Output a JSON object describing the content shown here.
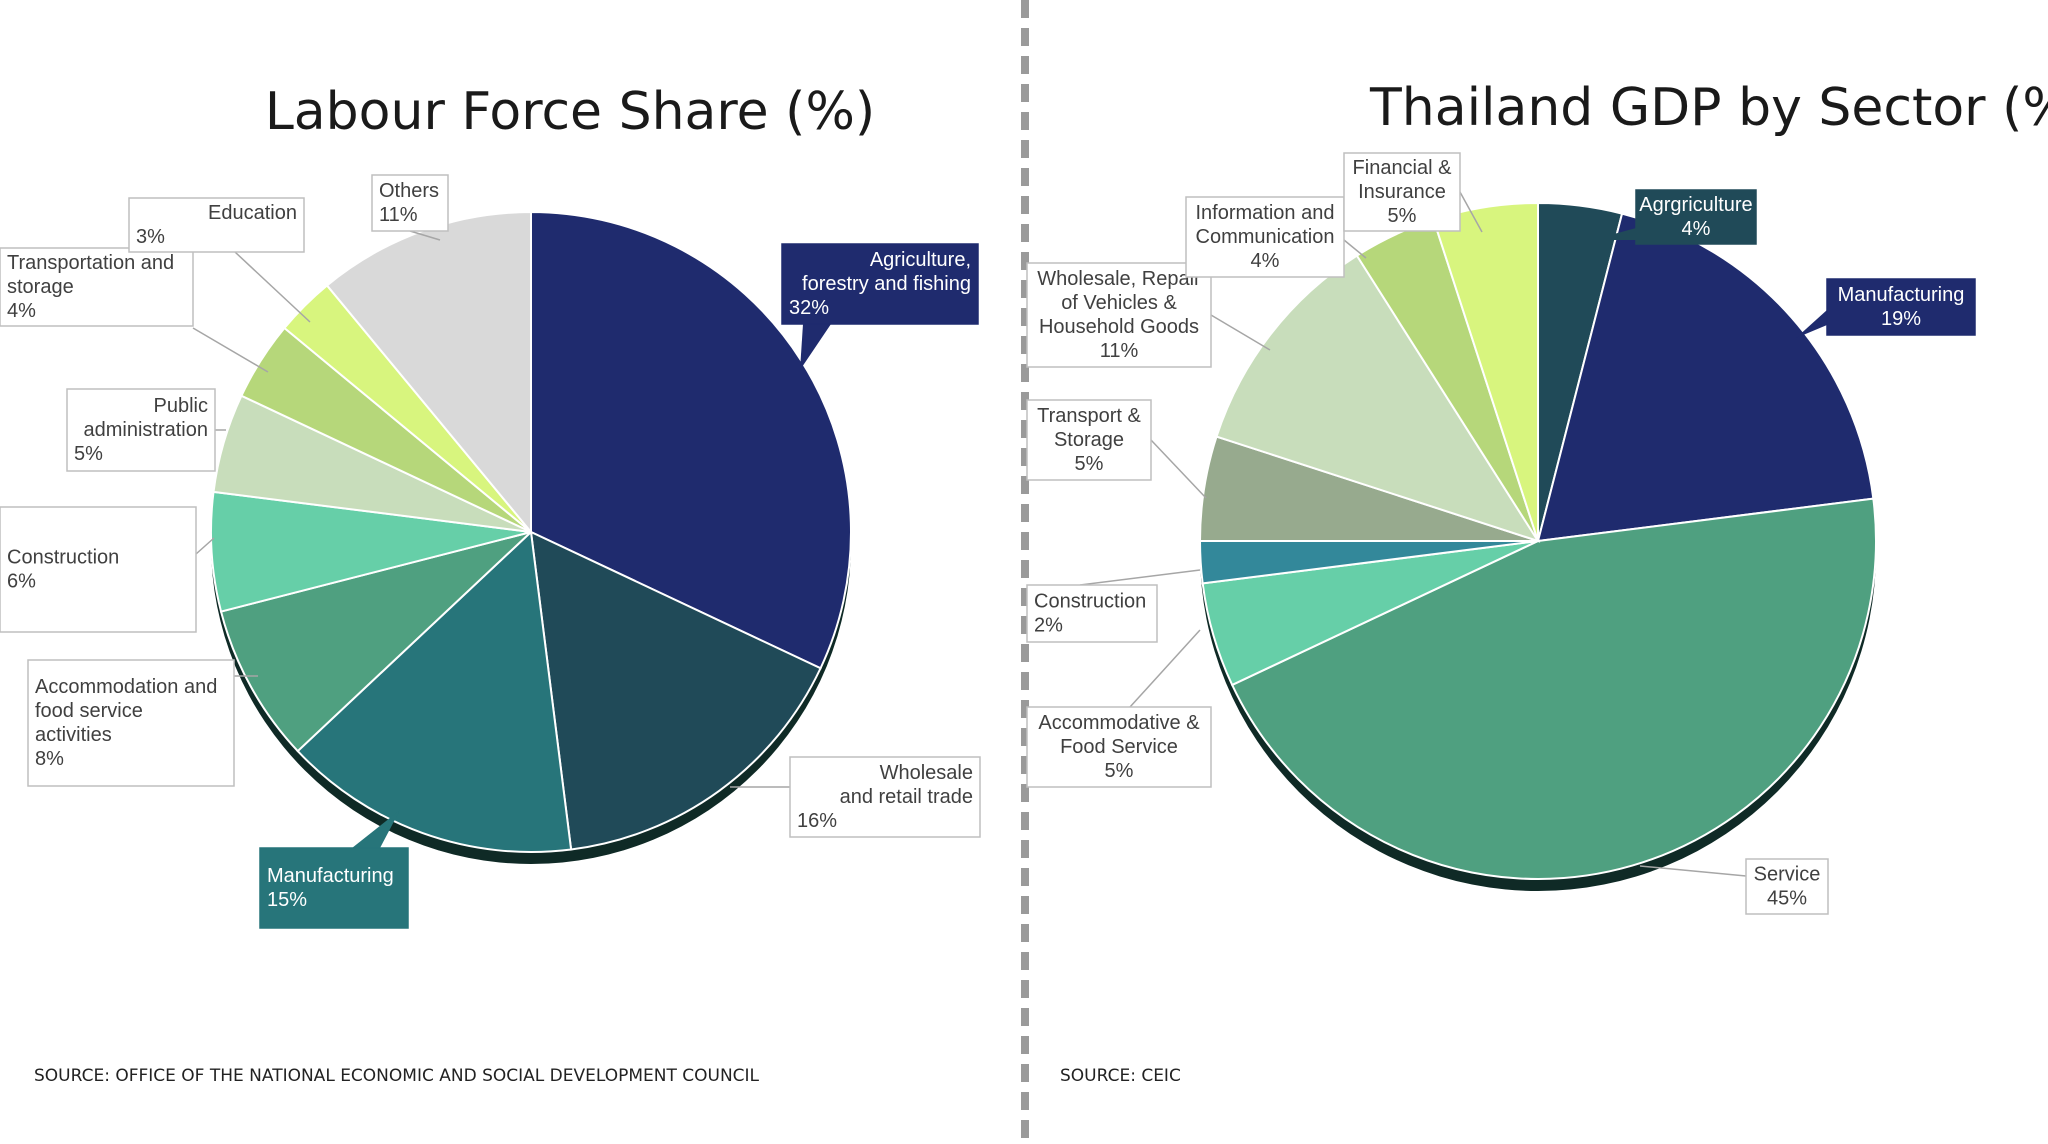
{
  "chart_data": [
    {
      "type": "pie",
      "title": "Labour Force Share (%)",
      "source": "SOURCE: OFFICE OF THE NATIONAL ECONOMIC AND SOCIAL DEVELOPMENT COUNCIL",
      "slices": [
        {
          "label": [
            "Agriculture,",
            "forestry and fishing",
            "32%"
          ],
          "value": 32,
          "color": "#1f2b6e",
          "style": "filled"
        },
        {
          "label": [
            "Wholesale",
            "and retail trade",
            "16%"
          ],
          "value": 16,
          "color": "#204a58",
          "style": "outline"
        },
        {
          "label": [
            "Manufacturing",
            "15%"
          ],
          "value": 15,
          "color": "#27757a",
          "style": "filled"
        },
        {
          "label": [
            "Accommodation and",
            "food service",
            "activities",
            "8%"
          ],
          "value": 8,
          "color": "#4fa080",
          "style": "outline"
        },
        {
          "label": [
            "Construction",
            "6%"
          ],
          "value": 6,
          "color": "#66cfa8",
          "style": "outline"
        },
        {
          "label": [
            "Public",
            "administration",
            "5%"
          ],
          "value": 5,
          "color": "#c8ddbb",
          "style": "outline"
        },
        {
          "label": [
            "Transportation and",
            "storage",
            "4%"
          ],
          "value": 4,
          "color": "#b6d77a",
          "style": "outline"
        },
        {
          "label": [
            "Education",
            "3%"
          ],
          "value": 3,
          "color": "#d8f57e",
          "style": "outline"
        },
        {
          "label": [
            "Others",
            "11%"
          ],
          "value": 11,
          "color": "#d9d9d9",
          "style": "outline"
        }
      ]
    },
    {
      "type": "pie",
      "title": "Thailand GDP by Sector (%)",
      "source": "SOURCE: CEIC",
      "slices": [
        {
          "label": [
            "Agrgriculture",
            "4%"
          ],
          "value": 4,
          "color": "#204a58",
          "style": "filled"
        },
        {
          "label": [
            "Manufacturing",
            "19%"
          ],
          "value": 19,
          "color": "#1f2b6e",
          "style": "filled"
        },
        {
          "label": [
            "Service",
            "45%"
          ],
          "value": 45,
          "color": "#4fa080",
          "style": "outline"
        },
        {
          "label": [
            "Accommodative &",
            "Food Service",
            "5%"
          ],
          "value": 5,
          "color": "#66cfa8",
          "style": "outline"
        },
        {
          "label": [
            "Construction",
            "2%"
          ],
          "value": 2,
          "color": "#33889a",
          "style": "outline"
        },
        {
          "label": [
            "Transport &",
            "Storage",
            "5%"
          ],
          "value": 5,
          "color": "#97aa8e",
          "style": "outline"
        },
        {
          "label": [
            "Wholesale, Repair",
            "of Vehicles &",
            "Household Goods",
            "11%"
          ],
          "value": 11,
          "color": "#c8ddbb",
          "style": "outline"
        },
        {
          "label": [
            "Information and",
            "Communication",
            "4%"
          ],
          "value": 4,
          "color": "#b6d77a",
          "style": "outline"
        },
        {
          "label": [
            "Financial &",
            "Insurance",
            "5%"
          ],
          "value": 5,
          "color": "#d8f57e",
          "style": "outline"
        }
      ]
    }
  ]
}
